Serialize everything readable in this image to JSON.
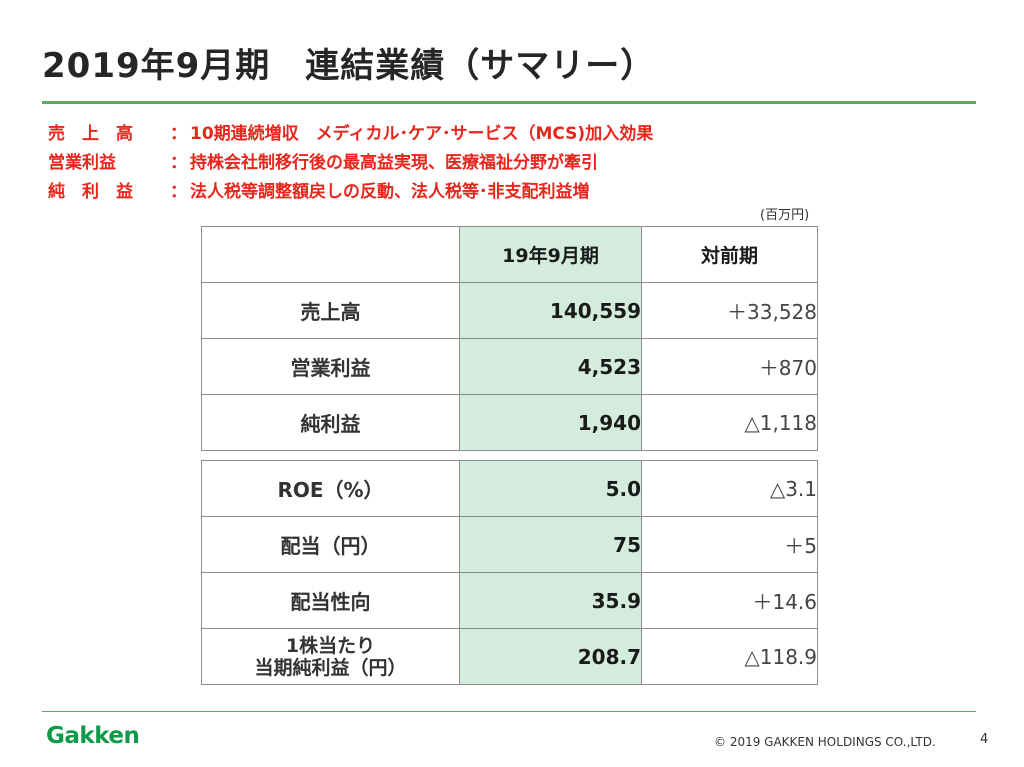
{
  "title": "2019年9月期　連結業績（サマリー）",
  "highlights": [
    {
      "label": "売　上　高",
      "colon": "：",
      "text": "10期連続増収　メディカル･ケア･サービス（MCS)加入効果"
    },
    {
      "label": "営業利益",
      "colon": "：",
      "text": "持株会社制移行後の最高益実現、医療福祉分野が牽引"
    },
    {
      "label": "純　利　益",
      "colon": "：",
      "text": "法人税等調整額戻しの反動、法人税等･非支配利益増"
    }
  ],
  "unit": "(百万円)",
  "table": {
    "header": {
      "label": "",
      "current": "19年9月期",
      "yoy": "対前期"
    },
    "top_rows": [
      {
        "label": "売上高",
        "current": "140,559",
        "yoy": "＋33,528"
      },
      {
        "label": "営業利益",
        "current": "4,523",
        "yoy": "＋870"
      },
      {
        "label": "純利益",
        "current": "1,940",
        "yoy": "△1,118"
      }
    ],
    "bottom_rows": [
      {
        "label": "ROE（%）",
        "current": "5.0",
        "yoy": "△3.1"
      },
      {
        "label": "配当（円）",
        "current": "75",
        "yoy": "＋5"
      },
      {
        "label": "配当性向",
        "current": "35.9",
        "yoy": "＋14.6"
      },
      {
        "label_line1": "1株当たり",
        "label_line2": "当期純利益（円）",
        "current": "208.7",
        "yoy": "△118.9"
      }
    ]
  },
  "footer": {
    "logo": "Gakken",
    "copyright": "© 2019 GAKKEN HOLDINGS CO.,LTD.",
    "page_number": "4"
  }
}
